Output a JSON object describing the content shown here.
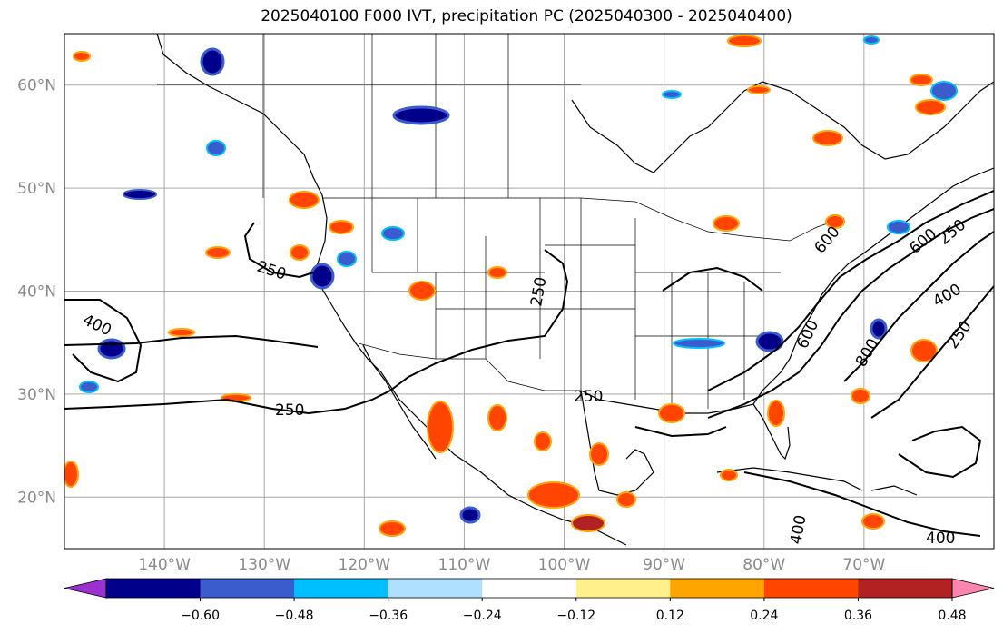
{
  "title": "2025040100 F000 IVT, precipitation PC (2025040300 - 2025040400)",
  "map": {
    "projection": "equirectangular",
    "lon_range": [
      -150,
      -57
    ],
    "lat_range": [
      15,
      65
    ],
    "lat_ticks": [
      {
        "value": 20,
        "label": "20°N"
      },
      {
        "value": 30,
        "label": "30°N"
      },
      {
        "value": 40,
        "label": "40°N"
      },
      {
        "value": 50,
        "label": "50°N"
      },
      {
        "value": 60,
        "label": "60°N"
      }
    ],
    "lon_ticks": [
      {
        "value": -140,
        "label": "140°W"
      },
      {
        "value": -130,
        "label": "130°W"
      },
      {
        "value": -120,
        "label": "120°W"
      },
      {
        "value": -110,
        "label": "110°W"
      },
      {
        "value": -100,
        "label": "100°W"
      },
      {
        "value": -90,
        "label": "90°W"
      },
      {
        "value": -80,
        "label": "80°W"
      },
      {
        "value": -70,
        "label": "70°W"
      }
    ],
    "gridlines": true,
    "ivt_contour_labels": [
      "250",
      "250",
      "250",
      "250",
      "400",
      "400",
      "400",
      "400",
      "600",
      "600",
      "600",
      "800",
      "250",
      "250"
    ]
  },
  "colorbar": {
    "tick_labels": [
      "−0.60",
      "−0.48",
      "−0.36",
      "−0.24",
      "−0.12",
      "0.12",
      "0.24",
      "0.36",
      "0.48",
      "0.60"
    ],
    "colors": [
      "#9b30d0",
      "#00008b",
      "#3a5ccc",
      "#00bfff",
      "#b0e0ff",
      "#ffffff",
      "#fff08c",
      "#ffa500",
      "#ff4500",
      "#b22222",
      "#ff85b0"
    ]
  }
}
